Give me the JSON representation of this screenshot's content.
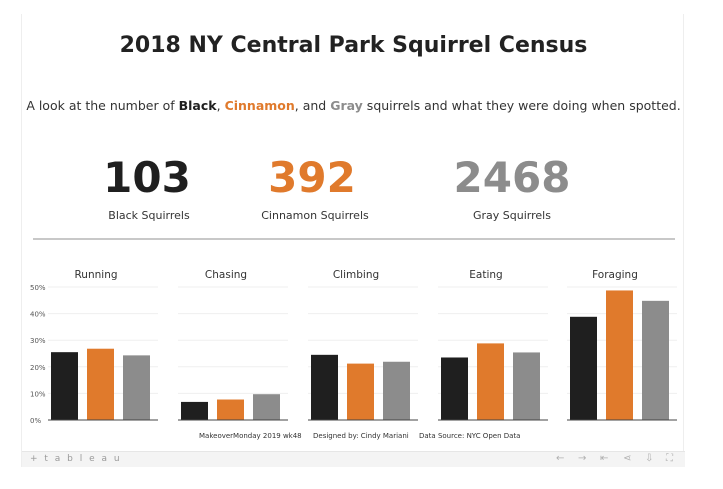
{
  "title": "2018 NY Central Park Squirrel Census",
  "subtitle": {
    "prefix": "A look at the number of ",
    "black": "Black",
    "sep1": ", ",
    "cinnamon": "Cinnamon",
    "sep2": ", and ",
    "gray": "Gray",
    "suffix": " squirrels and what they were doing when spotted."
  },
  "colors": {
    "black": "#1f1f1f",
    "cinnamon": "#e07a2c",
    "gray": "#8c8c8c"
  },
  "kpis": [
    {
      "value": "103",
      "label": "Black Squirrels",
      "color": "#1f1f1f"
    },
    {
      "value": "392",
      "label": "Cinnamon Squirrels",
      "color": "#e07a2c"
    },
    {
      "value": "2468",
      "label": "Gray Squirrels",
      "color": "#8c8c8c"
    }
  ],
  "chart_data": {
    "type": "bar",
    "panels": [
      "Running",
      "Chasing",
      "Climbing",
      "Eating",
      "Foraging"
    ],
    "series": [
      {
        "name": "Black",
        "color": "#1f1f1f",
        "values": [
          25.5,
          6.8,
          24.5,
          23.5,
          38.8
        ]
      },
      {
        "name": "Cinnamon",
        "color": "#e07a2c",
        "values": [
          26.8,
          7.7,
          21.2,
          28.8,
          48.7
        ]
      },
      {
        "name": "Gray",
        "color": "#8c8c8c",
        "values": [
          24.3,
          9.7,
          21.9,
          25.4,
          44.8
        ]
      }
    ],
    "y_ticks": [
      "0%",
      "10%",
      "20%",
      "30%",
      "40%",
      "50%"
    ],
    "ylim": [
      0,
      50
    ],
    "grid": true
  },
  "footer": {
    "makeover": "MakeoverMonday 2019 wk48",
    "designer": "Designed by: Cindy Mariani",
    "source": "Data Source: NYC Open Data"
  },
  "toolbar": {
    "logo": "+ t a b l e a u",
    "icons": [
      "undo-icon",
      "redo-icon",
      "revert-icon",
      "share-icon",
      "download-icon",
      "fullscreen-icon"
    ]
  }
}
